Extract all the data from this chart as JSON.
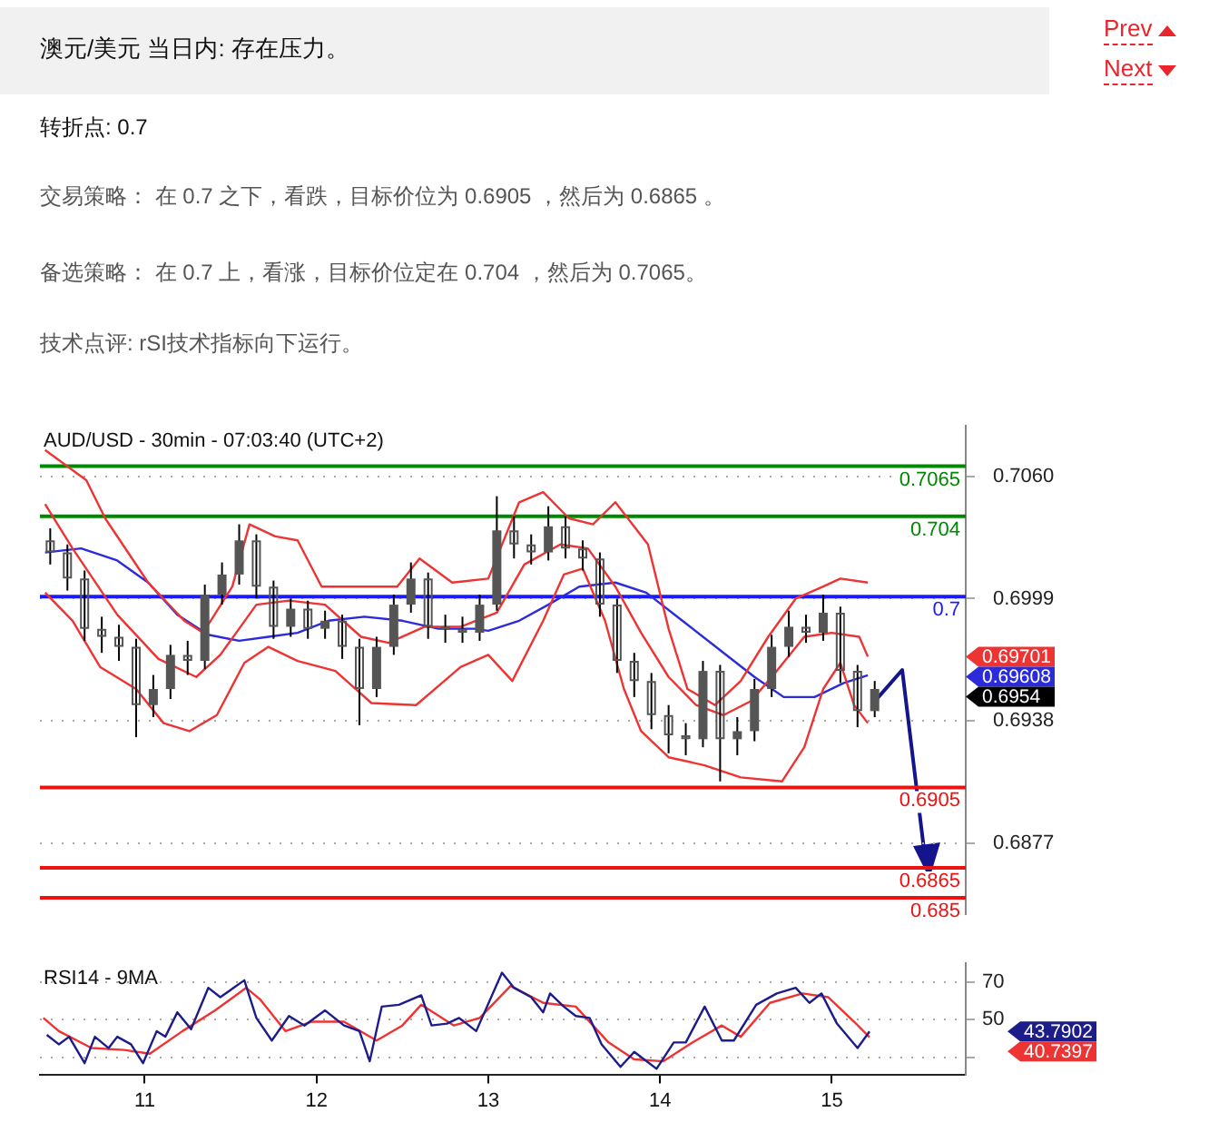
{
  "chart_data": [
    {
      "type": "candlestick",
      "title": "澳元/美元 当日内: 存在压力。",
      "annotations": [
        "Prev",
        "Next",
        "转折点: 0.7",
        "交易策略： 在 0.7 之下，看跌，目标价位为 0.6905 ，然后为 0.6865 。",
        "备选策略： 在 0.7 上，看涨，目标价位定在 0.704 ，然后为 0.7065。",
        "技术点评: rSI技术指标向下运行。",
        "AUD/USD - 30min - 07:03:40 (UTC+2)",
        "0.69701",
        "0.69608",
        "0.6954"
      ],
      "color": "#555555",
      "x": [
        10.45,
        10.55,
        10.65,
        10.75,
        10.85,
        10.95,
        11.05,
        11.15,
        11.25,
        11.35,
        11.45,
        11.55,
        11.65,
        11.75,
        11.85,
        11.95,
        12.05,
        12.15,
        12.25,
        12.35,
        12.45,
        12.55,
        12.65,
        12.75,
        12.85,
        12.95,
        13.05,
        13.15,
        13.25,
        13.35,
        13.45,
        13.55,
        13.65,
        13.75,
        13.85,
        13.95,
        14.05,
        14.15,
        14.25,
        14.35,
        14.45,
        14.55,
        14.65,
        14.75,
        14.85,
        14.95,
        15.05,
        15.15,
        15.25
      ],
      "ohlc": [
        [
          0.7028,
          0.7034,
          0.7016,
          0.7022
        ],
        [
          0.7022,
          0.7026,
          0.7003,
          0.7009
        ],
        [
          0.7009,
          0.7013,
          0.6978,
          0.6984
        ],
        [
          0.6984,
          0.699,
          0.6972,
          0.698
        ],
        [
          0.698,
          0.6986,
          0.6968,
          0.6975
        ],
        [
          0.6975,
          0.6979,
          0.693,
          0.6946
        ],
        [
          0.6946,
          0.6961,
          0.694,
          0.6954
        ],
        [
          0.6954,
          0.6976,
          0.6949,
          0.6971
        ],
        [
          0.6971,
          0.6978,
          0.6961,
          0.6968
        ],
        [
          0.6968,
          0.7006,
          0.6964,
          0.7001
        ],
        [
          0.7001,
          0.7017,
          0.6996,
          0.7011
        ],
        [
          0.7011,
          0.7036,
          0.7006,
          0.7028
        ],
        [
          0.7028,
          0.7031,
          0.6999,
          0.7005
        ],
        [
          0.7005,
          0.7008,
          0.6979,
          0.6985
        ],
        [
          0.6985,
          0.6999,
          0.698,
          0.6994
        ],
        [
          0.6994,
          0.6998,
          0.6979,
          0.6984
        ],
        [
          0.6984,
          0.6993,
          0.6979,
          0.6988
        ],
        [
          0.6988,
          0.6991,
          0.6969,
          0.6975
        ],
        [
          0.6975,
          0.6979,
          0.6936,
          0.6954
        ],
        [
          0.6954,
          0.698,
          0.695,
          0.6975
        ],
        [
          0.6975,
          0.7001,
          0.6971,
          0.6996
        ],
        [
          0.6996,
          0.7017,
          0.6992,
          0.7009
        ],
        [
          0.7009,
          0.7012,
          0.6979,
          0.6985
        ],
        [
          0.6985,
          0.6991,
          0.6977,
          0.6984
        ],
        [
          0.6984,
          0.699,
          0.6977,
          0.6982
        ],
        [
          0.6982,
          0.7001,
          0.6978,
          0.6996
        ],
        [
          0.6996,
          0.705,
          0.6993,
          0.7033
        ],
        [
          0.7033,
          0.704,
          0.7019,
          0.7026
        ],
        [
          0.7026,
          0.7031,
          0.7016,
          0.7022
        ],
        [
          0.7022,
          0.7045,
          0.7018,
          0.7035
        ],
        [
          0.7035,
          0.704,
          0.7019,
          0.7024
        ],
        [
          0.7024,
          0.7028,
          0.7013,
          0.7019
        ],
        [
          0.7019,
          0.7022,
          0.699,
          0.6996
        ],
        [
          0.6996,
          0.6999,
          0.6962,
          0.6968
        ],
        [
          0.6968,
          0.6972,
          0.695,
          0.6958
        ],
        [
          0.6958,
          0.6962,
          0.6934,
          0.6941
        ],
        [
          0.6941,
          0.6946,
          0.6922,
          0.6931
        ],
        [
          0.6931,
          0.6937,
          0.6921,
          0.6929
        ],
        [
          0.6929,
          0.6968,
          0.6925,
          0.6963
        ],
        [
          0.6963,
          0.6966,
          0.6908,
          0.6929
        ],
        [
          0.6929,
          0.694,
          0.6921,
          0.6933
        ],
        [
          0.6933,
          0.6959,
          0.6928,
          0.6954
        ],
        [
          0.6954,
          0.6981,
          0.695,
          0.6975
        ],
        [
          0.6975,
          0.6993,
          0.697,
          0.6985
        ],
        [
          0.6985,
          0.6991,
          0.6977,
          0.6982
        ],
        [
          0.6982,
          0.7001,
          0.6978,
          0.6992
        ],
        [
          0.6992,
          0.6995,
          0.6957,
          0.6963
        ],
        [
          0.6963,
          0.6966,
          0.6935,
          0.6943
        ],
        [
          0.6943,
          0.6958,
          0.694,
          0.6954
        ]
      ],
      "series": [
        {
          "type": "line",
          "color": "#ee3333",
          "x": [
            10.42,
            10.66,
            10.77,
            11.02,
            11.23,
            11.34,
            11.51,
            11.61,
            11.76,
            11.89,
            12.03,
            12.26,
            12.47,
            12.6,
            12.79,
            13.0,
            13.18,
            13.32,
            13.47,
            13.61,
            13.74,
            13.93,
            14.05,
            14.16,
            14.32,
            14.47,
            14.63,
            14.79,
            14.95,
            15.05,
            15.21
          ],
          "values": [
            0.7073,
            0.7058,
            0.7039,
            0.7007,
            0.6988,
            0.6982,
            0.7005,
            0.7036,
            0.703,
            0.7028,
            0.7005,
            0.7005,
            0.7005,
            0.7019,
            0.7007,
            0.7009,
            0.7047,
            0.7052,
            0.7039,
            0.7036,
            0.7047,
            0.7026,
            0.6984,
            0.6954,
            0.6946,
            0.6958,
            0.698,
            0.6999,
            0.7005,
            0.7009,
            0.7007
          ]
        },
        {
          "type": "line",
          "color": "#ee3333",
          "x": [
            10.42,
            10.58,
            10.84,
            11.08,
            11.3,
            11.44,
            11.65,
            11.84,
            12.05,
            12.26,
            12.42,
            12.63,
            12.84,
            13.05,
            13.21,
            13.42,
            13.58,
            13.74,
            13.89,
            14.05,
            14.21,
            14.37,
            14.53,
            14.68,
            14.84,
            15.0,
            15.16,
            15.21
          ],
          "values": [
            0.7046,
            0.7024,
            0.6991,
            0.6969,
            0.696,
            0.6971,
            0.6996,
            0.6998,
            0.6996,
            0.698,
            0.6977,
            0.6985,
            0.6985,
            0.6992,
            0.7016,
            0.7026,
            0.7024,
            0.7005,
            0.6982,
            0.696,
            0.6946,
            0.6941,
            0.6948,
            0.6963,
            0.698,
            0.6982,
            0.698,
            0.69701
          ]
        },
        {
          "type": "line",
          "color": "#ee3333",
          "x": [
            10.42,
            10.58,
            10.74,
            10.95,
            11.11,
            11.26,
            11.42,
            11.58,
            11.72,
            11.89,
            12.11,
            12.32,
            12.58,
            12.84,
            13.0,
            13.14,
            13.32,
            13.44,
            13.55,
            13.68,
            13.79,
            13.89,
            14.05,
            14.26,
            14.47,
            14.71,
            14.84,
            14.95,
            15.05,
            15.13,
            15.21
          ],
          "values": [
            0.7002,
            0.6988,
            0.6965,
            0.6954,
            0.6937,
            0.6933,
            0.6941,
            0.6967,
            0.6975,
            0.6968,
            0.6963,
            0.6947,
            0.6946,
            0.6965,
            0.6971,
            0.6958,
            0.6988,
            0.7011,
            0.7014,
            0.6988,
            0.6954,
            0.6933,
            0.692,
            0.6916,
            0.691,
            0.6908,
            0.6925,
            0.6954,
            0.6967,
            0.6946,
            0.6937
          ]
        },
        {
          "type": "line",
          "color": "#2b2bdc",
          "x": [
            10.42,
            10.63,
            10.84,
            11.02,
            11.19,
            11.37,
            11.55,
            11.72,
            11.89,
            12.07,
            12.28,
            12.5,
            12.71,
            12.92,
            13.0,
            13.18,
            13.35,
            13.53,
            13.74,
            13.92,
            14.13,
            14.34,
            14.55,
            14.72,
            14.9,
            15.07,
            15.21
          ],
          "values": [
            0.7022,
            0.7024,
            0.7018,
            0.7007,
            0.6991,
            0.6981,
            0.6978,
            0.698,
            0.6982,
            0.6988,
            0.699,
            0.6988,
            0.6984,
            0.6984,
            0.6983,
            0.6988,
            0.6996,
            0.7005,
            0.7007,
            0.7002,
            0.6988,
            0.6974,
            0.696,
            0.695,
            0.695,
            0.6957,
            0.69608
          ]
        }
      ],
      "ref_lines": [
        {
          "axis": "y",
          "value": 0.7065,
          "label": "0.7065",
          "color": "#008800"
        },
        {
          "axis": "y",
          "value": 0.704,
          "label": "0.704",
          "color": "#008800"
        },
        {
          "axis": "y",
          "value": 0.7,
          "label": "0.7",
          "color": "#1a1aff"
        },
        {
          "axis": "y",
          "value": 0.6905,
          "label": "0.6905",
          "color": "#ee1111"
        },
        {
          "axis": "y",
          "value": 0.6865,
          "label": "0.6865",
          "color": "#ee1111"
        },
        {
          "axis": "y",
          "value": 0.685,
          "label": "0.685",
          "color": "#ee1111"
        }
      ],
      "xlim": [
        10.39,
        15.78
      ],
      "xticks": [
        11,
        12,
        13,
        14,
        15
      ],
      "ylim": [
        0.6842,
        0.7085
      ],
      "yticks": [
        {
          "value": 0.706,
          "label": "0.7060"
        },
        0.6999,
        0.6938,
        0.6877
      ],
      "tick_labels": "y",
      "grid": "y",
      "marker": "none"
    },
    {
      "type": "line",
      "title": "RSI14 - 9MA",
      "annotations": [
        "43.7902",
        "40.7397"
      ],
      "series": [
        {
          "color": "#1c1c8a",
          "x": [
            10.43,
            10.5,
            10.56,
            10.65,
            10.71,
            10.79,
            10.84,
            10.92,
            10.99,
            11.07,
            11.12,
            11.19,
            11.27,
            11.37,
            11.44,
            11.58,
            11.65,
            11.74,
            11.84,
            11.93,
            12.05,
            12.16,
            12.25,
            12.31,
            12.38,
            12.48,
            12.61,
            12.67,
            12.76,
            12.83,
            12.93,
            13.08,
            13.15,
            13.25,
            13.32,
            13.36,
            13.44,
            13.51,
            13.59,
            13.66,
            13.77,
            13.85,
            13.98,
            14.08,
            14.15,
            14.26,
            14.36,
            14.43,
            14.56,
            14.68,
            14.79,
            14.87,
            14.94,
            15.03,
            15.15,
            15.22
          ],
          "values": [
            42,
            37,
            41,
            27,
            41,
            35,
            41,
            37,
            27,
            44,
            41,
            54,
            45,
            67,
            62,
            71,
            51,
            39,
            52,
            47,
            55,
            47,
            44,
            28,
            57,
            58,
            63,
            47,
            48,
            51,
            44,
            75,
            67,
            62,
            54,
            64,
            57,
            52,
            51,
            37,
            25,
            33,
            24,
            38,
            38,
            57,
            39,
            39,
            58,
            64,
            67,
            59,
            64,
            48,
            35,
            43.7902
          ]
        },
        {
          "color": "#ee3333",
          "x": [
            10.41,
            10.5,
            10.69,
            10.88,
            11.03,
            11.22,
            11.41,
            11.59,
            11.67,
            11.82,
            11.97,
            12.16,
            12.35,
            12.5,
            12.61,
            12.8,
            12.95,
            13.13,
            13.32,
            13.51,
            13.7,
            13.85,
            14.02,
            14.19,
            14.36,
            14.47,
            14.64,
            14.83,
            14.98,
            15.13,
            15.22
          ],
          "values": [
            51,
            44,
            35,
            34,
            32,
            44,
            55,
            67,
            61,
            44,
            49,
            49,
            39,
            47,
            58,
            47,
            51,
            68,
            59,
            57,
            38,
            29,
            28,
            38,
            47,
            41,
            59,
            64,
            62,
            49,
            40.7397
          ]
        }
      ],
      "xlim": [
        10.39,
        15.78
      ],
      "xticks": [
        11,
        12,
        13,
        14,
        15
      ],
      "ylim": [
        21,
        80
      ],
      "yticks": [
        70,
        50,
        {
          "value": 30,
          "label": null
        }
      ],
      "grid": "y",
      "marker": "none"
    }
  ]
}
